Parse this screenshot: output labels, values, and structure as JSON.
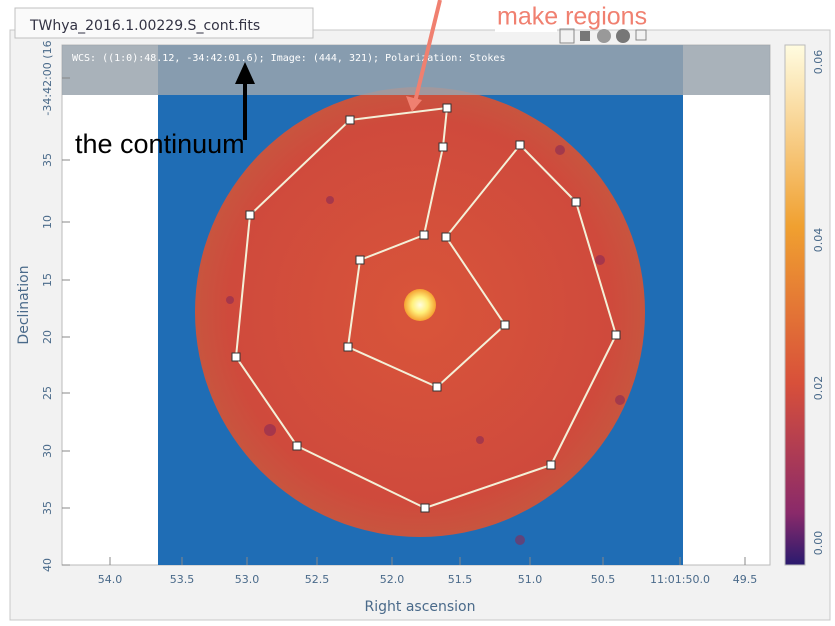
{
  "tab": {
    "title": "TWhya_2016.1.00229.S_cont.fits"
  },
  "annotations": {
    "regions": "make regions",
    "continuum": "the continuum"
  },
  "info_bar": "WCS: ((1:0):48.12, -34:42:01.6); Image: (444, 321); Polarization: Stokes",
  "axes": {
    "y_label": "Declination",
    "y_ticks": [
      "-34:42:00 (16",
      "35",
      "10",
      "15",
      "20",
      "25",
      "30",
      "35",
      "40"
    ],
    "x_label": "Right ascension",
    "x_ticks": [
      "54.0",
      "53.5",
      "53.0",
      "52.5",
      "52.0",
      "51.5",
      "51.0",
      "50.5",
      "11:01:50.0",
      "49.5"
    ]
  },
  "colorbar_ticks": [
    "0.06",
    "0.04",
    "0.02",
    "0.00"
  ]
}
